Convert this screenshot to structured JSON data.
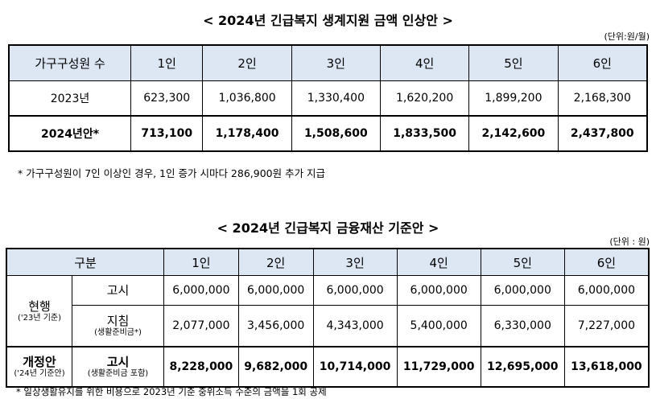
{
  "section1": {
    "title": "< 2024년 긴급복지 생계지원 금액 인상안 >",
    "unit": "(단위:원/월)",
    "header": [
      "가구구성원 수",
      "1인",
      "2인",
      "3인",
      "4인",
      "5인",
      "6인"
    ],
    "rows": [
      {
        "label": "2023년",
        "values": [
          "623,300",
          "1,036,800",
          "1,330,400",
          "1,620,200",
          "1,899,200",
          "2,168,300"
        ]
      },
      {
        "label": "2024년안*",
        "values": [
          "713,100",
          "1,178,400",
          "1,508,600",
          "1,833,500",
          "2,142,600",
          "2,437,800"
        ]
      }
    ],
    "note": "* 가구구성원이 7인 이상인 경우, 1인 증가 시마다 286,900원 추가 지급"
  },
  "section2": {
    "title": "< 2024년 긴급복지 금융재산 기준안 >",
    "unit": "(단위 : 원)",
    "header": [
      "구분",
      "1인",
      "2인",
      "3인",
      "4인",
      "5인",
      "6인"
    ],
    "group_current": {
      "label": "현행",
      "sub": "('23년 기준)"
    },
    "group_revised": {
      "label": "개정안",
      "sub": "('24년 기준안)"
    },
    "rows": [
      {
        "label": "고시",
        "sub": "",
        "values": [
          "6,000,000",
          "6,000,000",
          "6,000,000",
          "6,000,000",
          "6,000,000",
          "6,000,000"
        ]
      },
      {
        "label": "지침",
        "sub": "(생활준비금*)",
        "values": [
          "2,077,000",
          "3,456,000",
          "4,343,000",
          "5,400,000",
          "6,330,000",
          "7,227,000"
        ]
      },
      {
        "label": "고시",
        "sub": "(생활준비금 포함)",
        "values": [
          "8,228,000",
          "9,682,000",
          "10,714,000",
          "11,729,000",
          "12,695,000",
          "13,618,000"
        ]
      }
    ],
    "note": "* 일상생활유지를 위한 비용으로 2023년 기준 중위소득 수준의 금액을 1회 공제"
  }
}
